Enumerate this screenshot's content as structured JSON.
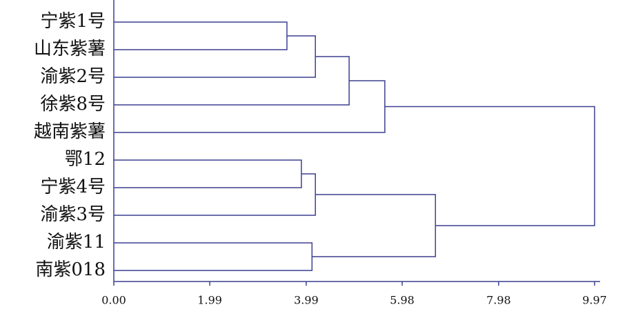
{
  "chart_data": {
    "type": "dendrogram",
    "color": "#3b3f8f",
    "xlim": [
      0,
      9.97
    ],
    "xticks": [
      {
        "value": 0,
        "label": "0.00"
      },
      1.99,
      3.99,
      5.98,
      7.98,
      9.97
    ],
    "tree": {
      "height": 9.97,
      "children": [
        {
          "height": 5.62,
          "children": [
            {
              "height": 4.88,
              "children": [
                {
                  "height": 4.18,
                  "children": [
                    {
                      "height": 3.59,
                      "children": [
                        {
                          "label": "宁紫1号"
                        },
                        {
                          "label": "山东紫薯"
                        }
                      ]
                    },
                    {
                      "label": "渝紫2号"
                    }
                  ]
                },
                {
                  "label": "徐紫8号"
                }
              ]
            },
            {
              "label": "越南紫薯"
            }
          ]
        },
        {
          "height": 6.67,
          "children": [
            {
              "height": 4.18,
              "children": [
                {
                  "height": 3.89,
                  "children": [
                    {
                      "label": "鄂12"
                    },
                    {
                      "label": "宁紫4号"
                    }
                  ]
                },
                {
                  "label": "渝紫3号"
                }
              ]
            },
            {
              "height": 4.11,
              "children": [
                {
                  "label": "渝紫11"
                },
                {
                  "label": "南紫018"
                }
              ]
            }
          ]
        }
      ]
    }
  }
}
